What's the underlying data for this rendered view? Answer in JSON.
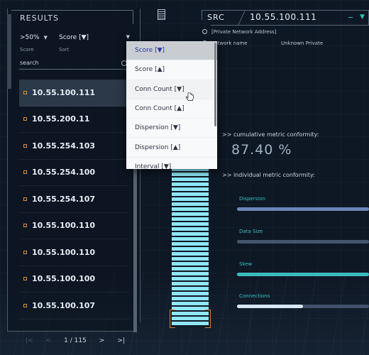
{
  "results": {
    "title": "RESULTS",
    "score_filter": {
      "value": ">50%",
      "caption": "Score"
    },
    "sort_filter": {
      "value": "Score [▼]",
      "caption": "Sort"
    },
    "search_placeholder": "search",
    "items": [
      "10.55.100.111",
      "10.55.200.11",
      "10.55.254.103",
      "10.55.254.100",
      "10.55.254.107",
      "10.55.100.110",
      "10.55.100.110",
      "10.55.100.100",
      "10.55.100.107"
    ],
    "pagination": {
      "first": "|<",
      "prev": "<",
      "page": "1 / 115",
      "next": ">",
      "last": ">|"
    }
  },
  "sort_dropdown": {
    "options": [
      "Score [▼]",
      "Score [▲]",
      "Conn Count [▼]",
      "Conn Count [▲]",
      "Dispersion [▼]",
      "Dispersion [▲]",
      "Interval [▼]"
    ]
  },
  "detail": {
    "src_label": "SRC",
    "src_ip": "10.55.100.111",
    "network_type": "[Private Network Address]",
    "network_name_label": "network name",
    "network_name_value": "Unknown Private",
    "cumulative_label": ">> cumulative metric conformity:",
    "cumulative_value": "87.40 %",
    "individual_label": ">> individual metric conformity:",
    "metrics": [
      {
        "name": "Dispersion",
        "value": 1.0,
        "color": "#6a86b8"
      },
      {
        "name": "Data Size",
        "value": 1.0,
        "color": "#44566e"
      },
      {
        "name": "Skew",
        "value": 1.0,
        "color": "#3bbac0"
      },
      {
        "name": "Connections",
        "value": 0.5,
        "color": "#d7e7f2"
      }
    ]
  },
  "colors": {
    "accent_teal": "#29c0b0",
    "accent_orange": "#e08a35",
    "gauge_bar": "#8fe7f7"
  }
}
